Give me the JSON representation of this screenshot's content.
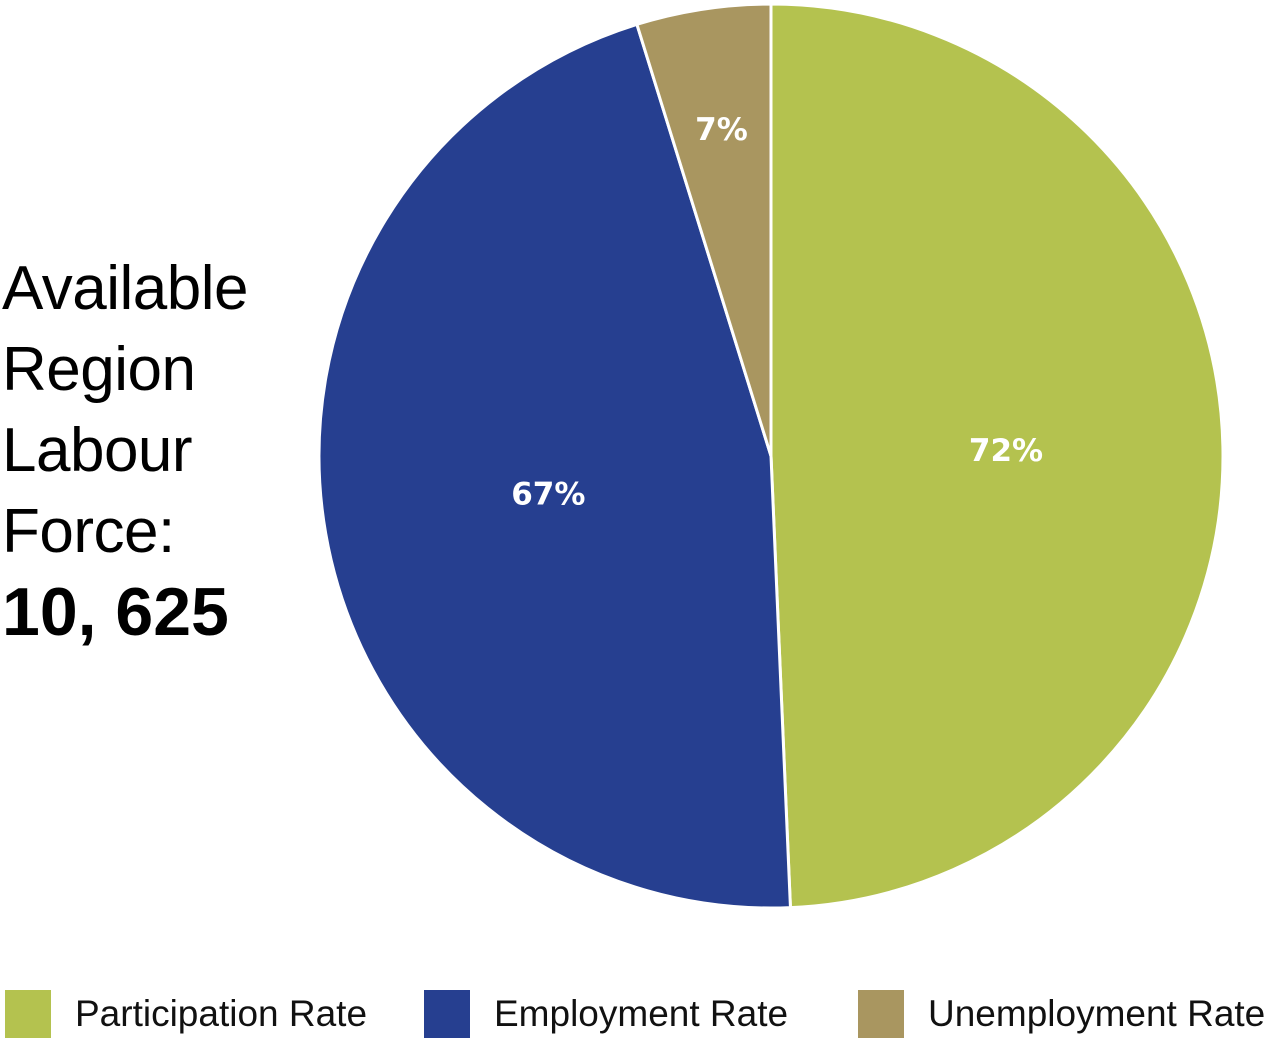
{
  "side_label": {
    "lines": [
      "Available",
      "Region",
      "Labour",
      "Force:"
    ],
    "value": "10, 625"
  },
  "chart_data": {
    "type": "pie",
    "slices": [
      {
        "name": "Participation Rate",
        "value": 72,
        "label": "72%",
        "color": "#b4c24f"
      },
      {
        "name": "Employment Rate",
        "value": 67,
        "label": "67%",
        "color": "#263f90"
      },
      {
        "name": "Unemployment Rate",
        "value": 7,
        "label": "7%",
        "color": "#a99660"
      }
    ],
    "legend": [
      "Participation Rate",
      "Employment Rate",
      "Unemployment Rate"
    ],
    "legend_position": "bottom"
  }
}
